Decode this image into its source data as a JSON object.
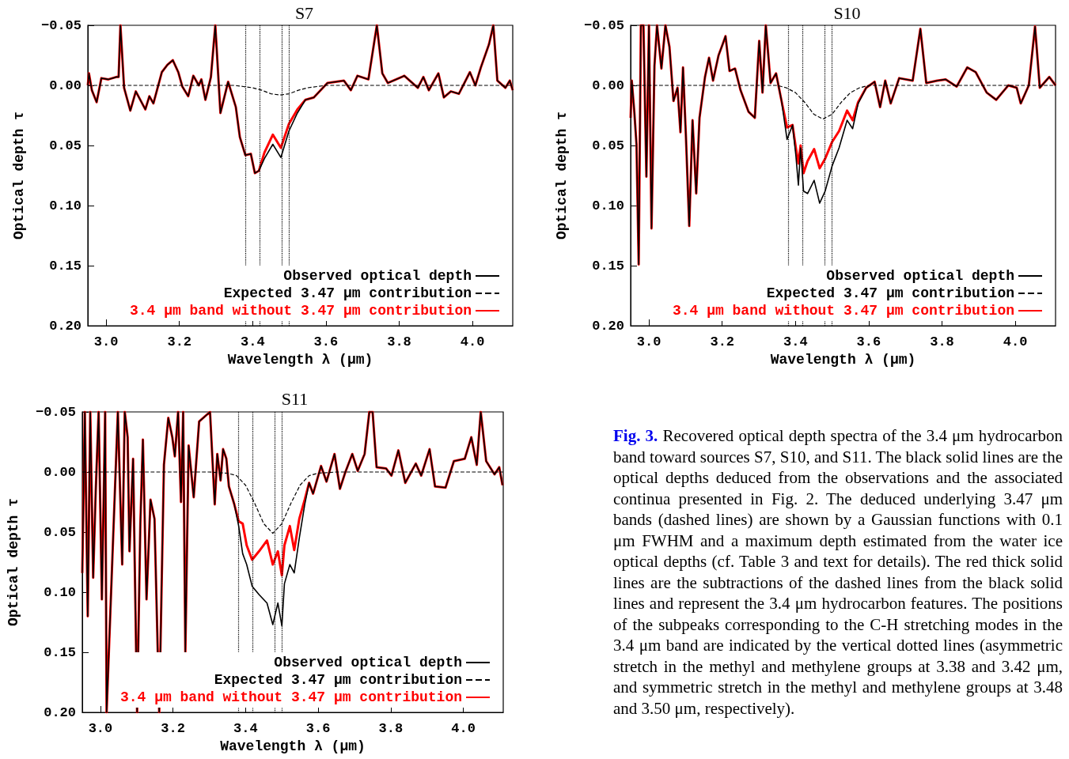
{
  "chart_data": [
    {
      "type": "line",
      "title": "S7",
      "xlabel": "Wavelength λ (μm)",
      "ylabel": "Optical depth τ",
      "xlim": [
        2.95,
        4.11
      ],
      "ylim": [
        0.2,
        -0.05
      ],
      "xticks": [
        {
          "value": 3.0,
          "label": "3.0"
        },
        {
          "value": 3.2,
          "label": "3.2"
        },
        {
          "value": 3.4,
          "label": "3.4"
        },
        {
          "value": 3.6,
          "label": "3.6"
        },
        {
          "value": 3.8,
          "label": "3.8"
        },
        {
          "value": 4.0,
          "label": "4.0"
        }
      ],
      "yticks": [
        {
          "value": -0.05,
          "label": "−0.05"
        },
        {
          "value": 0,
          "label": "0.00"
        },
        {
          "value": 0.05,
          "label": "0.05"
        },
        {
          "value": 0.1,
          "label": "0.10"
        },
        {
          "value": 0.15,
          "label": "0.15"
        },
        {
          "value": 0.2,
          "label": "0.20"
        }
      ],
      "grid": false,
      "legend": "bottom right",
      "marker": "none",
      "x": [
        2.95,
        2.953,
        2.961,
        2.974,
        2.987,
        3.006,
        3.028,
        3.034,
        3.039,
        3.049,
        3.066,
        3.081,
        3.107,
        3.118,
        3.129,
        3.152,
        3.167,
        3.182,
        3.197,
        3.208,
        3.224,
        3.238,
        3.253,
        3.26,
        3.271,
        3.286,
        3.298,
        3.312,
        3.333,
        3.354,
        3.365,
        3.38,
        3.395,
        3.406,
        3.417,
        3.432,
        3.455,
        3.477,
        3.499,
        3.522,
        3.544,
        3.567,
        3.604,
        3.649,
        3.668,
        3.686,
        3.716,
        3.739,
        3.754,
        3.769,
        3.814,
        3.851,
        3.866,
        3.881,
        3.907,
        3.922,
        3.941,
        3.963,
        3.993,
        4.008,
        4.023,
        4.045,
        4.057,
        4.068,
        4.09,
        4.102,
        4.11
      ],
      "series": [
        {
          "name": "Observed optical depth",
          "color": "#000000",
          "line_style": "solid",
          "values": [
            0.0,
            -0.01,
            0.004,
            0.014,
            -0.006,
            -0.005,
            -0.007,
            -0.007,
            -0.05,
            0.002,
            0.021,
            0.005,
            0.02,
            0.009,
            0.015,
            -0.011,
            -0.017,
            -0.021,
            -0.011,
            0.001,
            0.009,
            -0.008,
            0.0,
            -0.005,
            0.012,
            -0.007,
            -0.05,
            0.023,
            -0.003,
            0.018,
            0.043,
            0.058,
            0.057,
            0.073,
            0.071,
            0.061,
            0.049,
            0.06,
            0.038,
            0.023,
            0.012,
            0.01,
            -0.002,
            -0.004,
            0.004,
            -0.008,
            -0.005,
            -0.05,
            -0.01,
            -0.002,
            -0.008,
            0.002,
            -0.007,
            0.004,
            -0.01,
            0.01,
            0.005,
            0.007,
            -0.011,
            0.0,
            -0.015,
            -0.034,
            -0.05,
            -0.004,
            0.002,
            -0.004,
            0.004
          ]
        },
        {
          "name": "Expected 3.47 μm contribution",
          "color": "#000000",
          "line_style": "dashed",
          "x": [
            2.95,
            3.3,
            3.35,
            3.375,
            3.4,
            3.425,
            3.45,
            3.475,
            3.5,
            3.525,
            3.55,
            3.575,
            3.6,
            3.65,
            4.11
          ],
          "values": [
            0,
            0,
            0.0,
            0.001,
            0.002,
            0.004,
            0.007,
            0.008,
            0.007,
            0.004,
            0.002,
            0.001,
            0.0,
            0,
            0
          ]
        },
        {
          "name": "3.4 μm band without 3.47 μm contribution",
          "color": "#ff0000",
          "line_style": "solid",
          "values": [
            0.0,
            -0.01,
            0.004,
            0.014,
            -0.006,
            -0.005,
            -0.007,
            -0.007,
            -0.05,
            0.002,
            0.021,
            0.005,
            0.02,
            0.009,
            0.015,
            -0.011,
            -0.017,
            -0.021,
            -0.011,
            0.001,
            0.009,
            -0.008,
            0.0,
            -0.005,
            0.012,
            -0.007,
            -0.05,
            0.023,
            -0.003,
            0.018,
            0.043,
            0.058,
            0.057,
            0.073,
            0.071,
            0.056,
            0.041,
            0.052,
            0.032,
            0.02,
            0.012,
            0.01,
            -0.002,
            -0.004,
            0.004,
            -0.008,
            -0.005,
            -0.05,
            -0.01,
            -0.002,
            -0.008,
            0.002,
            -0.007,
            0.004,
            -0.01,
            0.01,
            0.005,
            0.007,
            -0.011,
            0.0,
            -0.015,
            -0.034,
            -0.05,
            -0.004,
            0.002,
            -0.004,
            0.004
          ]
        }
      ],
      "ref_lines": [
        {
          "axis": "x",
          "value": 3.38,
          "line_style": "dotted",
          "color": "#000000"
        },
        {
          "axis": "x",
          "value": 3.42,
          "line_style": "dotted",
          "color": "#000000"
        },
        {
          "axis": "x",
          "value": 3.48,
          "line_style": "dotted",
          "color": "#000000"
        },
        {
          "axis": "x",
          "value": 3.5,
          "line_style": "dotted",
          "color": "#000000"
        }
      ]
    },
    {
      "type": "line",
      "title": "S10",
      "xlabel": "Wavelength λ (μm)",
      "ylabel": "Optical depth τ",
      "xlim": [
        2.95,
        4.11
      ],
      "ylim": [
        0.2,
        -0.05
      ],
      "xticks": [
        {
          "value": 3.0,
          "label": "3.0"
        },
        {
          "value": 3.2,
          "label": "3.2"
        },
        {
          "value": 3.4,
          "label": "3.4"
        },
        {
          "value": 3.6,
          "label": "3.6"
        },
        {
          "value": 3.8,
          "label": "3.8"
        },
        {
          "value": 4.0,
          "label": "4.0"
        }
      ],
      "yticks": [
        {
          "value": -0.05,
          "label": "−0.05"
        },
        {
          "value": 0,
          "label": "0.00"
        },
        {
          "value": 0.05,
          "label": "0.05"
        },
        {
          "value": 0.1,
          "label": "0.10"
        },
        {
          "value": 0.15,
          "label": "0.15"
        },
        {
          "value": 0.2,
          "label": "0.20"
        }
      ],
      "grid": false,
      "legend": "bottom right",
      "marker": "none",
      "x": [
        2.95,
        2.953,
        2.96,
        2.966,
        2.972,
        2.978,
        2.985,
        2.993,
        3.0,
        3.007,
        3.015,
        3.022,
        3.034,
        3.045,
        3.056,
        3.067,
        3.078,
        3.086,
        3.093,
        3.101,
        3.11,
        3.119,
        3.129,
        3.138,
        3.153,
        3.164,
        3.175,
        3.19,
        3.201,
        3.209,
        3.22,
        3.235,
        3.25,
        3.272,
        3.289,
        3.301,
        3.31,
        3.319,
        3.332,
        3.347,
        3.362,
        3.377,
        3.392,
        3.401,
        3.408,
        3.414,
        3.422,
        3.433,
        3.451,
        3.466,
        3.481,
        3.5,
        3.519,
        3.541,
        3.556,
        3.571,
        3.593,
        3.616,
        3.631,
        3.645,
        3.66,
        3.683,
        3.72,
        3.741,
        3.757,
        3.787,
        3.81,
        3.84,
        3.869,
        3.892,
        3.922,
        3.948,
        3.981,
        4.004,
        4.015,
        4.037,
        4.054,
        4.067,
        4.093,
        4.11
      ],
      "series": [
        {
          "name": "Observed optical depth",
          "color": "#000000",
          "line_style": "solid",
          "values": [
            0.027,
            -0.004,
            0.022,
            0.049,
            0.149,
            -0.05,
            -0.05,
            0.076,
            -0.05,
            0.119,
            -0.016,
            -0.05,
            -0.014,
            -0.05,
            -0.032,
            0.013,
            0.002,
            0.039,
            -0.015,
            0.043,
            0.117,
            0.029,
            0.09,
            0.027,
            -0.007,
            -0.023,
            -0.004,
            -0.025,
            -0.034,
            -0.041,
            -0.012,
            -0.014,
            0.004,
            0.022,
            0.027,
            -0.037,
            0.006,
            -0.05,
            -0.002,
            -0.01,
            0.013,
            0.045,
            0.033,
            0.058,
            0.083,
            0.052,
            0.088,
            0.09,
            0.079,
            0.098,
            0.088,
            0.067,
            0.052,
            0.029,
            0.036,
            0.015,
            0.002,
            -0.003,
            0.018,
            -0.004,
            0.015,
            -0.006,
            -0.004,
            -0.047,
            -0.002,
            -0.004,
            -0.005,
            0.001,
            -0.015,
            -0.011,
            0.006,
            0.012,
            0.0,
            0.002,
            0.015,
            0.0,
            -0.049,
            0.002,
            -0.007,
            0.0
          ]
        },
        {
          "name": "Expected 3.47 μm contribution",
          "color": "#000000",
          "line_style": "dashed",
          "x": [
            2.95,
            3.3,
            3.35,
            3.375,
            3.4,
            3.425,
            3.45,
            3.475,
            3.5,
            3.525,
            3.55,
            3.575,
            3.6,
            3.65,
            4.11
          ],
          "values": [
            0,
            0,
            0.0,
            0.002,
            0.006,
            0.014,
            0.024,
            0.028,
            0.024,
            0.014,
            0.006,
            0.002,
            0.0,
            0,
            0
          ]
        },
        {
          "name": "3.4 μm band without 3.47 μm contribution",
          "color": "#ff0000",
          "line_style": "solid",
          "values": [
            0.027,
            -0.004,
            0.022,
            0.049,
            0.149,
            -0.05,
            -0.05,
            0.076,
            -0.05,
            0.119,
            -0.016,
            -0.05,
            -0.014,
            -0.05,
            -0.032,
            0.013,
            0.002,
            0.039,
            -0.015,
            0.043,
            0.117,
            0.029,
            0.09,
            0.027,
            -0.007,
            -0.023,
            -0.004,
            -0.025,
            -0.034,
            -0.041,
            -0.012,
            -0.014,
            0.004,
            0.022,
            0.027,
            -0.037,
            0.006,
            -0.05,
            -0.002,
            -0.01,
            0.013,
            0.035,
            0.033,
            0.052,
            0.065,
            0.05,
            0.073,
            0.063,
            0.053,
            0.069,
            0.061,
            0.047,
            0.038,
            0.021,
            0.029,
            0.014,
            0.002,
            -0.003,
            0.018,
            -0.004,
            0.015,
            -0.006,
            -0.004,
            -0.047,
            -0.002,
            -0.004,
            -0.005,
            0.001,
            -0.015,
            -0.011,
            0.006,
            0.012,
            0.0,
            0.002,
            0.015,
            0.0,
            -0.049,
            0.002,
            -0.007,
            0.0
          ]
        }
      ],
      "ref_lines": [
        {
          "axis": "x",
          "value": 3.38,
          "line_style": "dotted",
          "color": "#000000"
        },
        {
          "axis": "x",
          "value": 3.42,
          "line_style": "dotted",
          "color": "#000000"
        },
        {
          "axis": "x",
          "value": 3.48,
          "line_style": "dotted",
          "color": "#000000"
        },
        {
          "axis": "x",
          "value": 3.5,
          "line_style": "dotted",
          "color": "#000000"
        }
      ]
    },
    {
      "type": "line",
      "title": "S11",
      "xlabel": "Wavelength λ (μm)",
      "ylabel": "Optical depth τ",
      "xlim": [
        2.95,
        4.11
      ],
      "ylim": [
        0.2,
        -0.05
      ],
      "xticks": [
        {
          "value": 3.0,
          "label": "3.0"
        },
        {
          "value": 3.2,
          "label": "3.2"
        },
        {
          "value": 3.4,
          "label": "3.4"
        },
        {
          "value": 3.6,
          "label": "3.6"
        },
        {
          "value": 3.8,
          "label": "3.8"
        },
        {
          "value": 4.0,
          "label": "4.0"
        }
      ],
      "yticks": [
        {
          "value": -0.05,
          "label": "−0.05"
        },
        {
          "value": 0,
          "label": "0.00"
        },
        {
          "value": 0.05,
          "label": "0.05"
        },
        {
          "value": 0.1,
          "label": "0.10"
        },
        {
          "value": 0.15,
          "label": "0.15"
        },
        {
          "value": 0.2,
          "label": "0.20"
        }
      ],
      "grid": false,
      "legend": "bottom right",
      "marker": "none",
      "x": [
        2.95,
        2.957,
        2.965,
        2.972,
        2.98,
        2.987,
        2.995,
        3.004,
        3.013,
        3.017,
        3.048,
        3.06,
        3.067,
        3.075,
        3.08,
        3.09,
        3.101,
        3.11,
        3.117,
        3.127,
        3.138,
        3.149,
        3.162,
        3.175,
        3.187,
        3.198,
        3.205,
        3.214,
        3.222,
        3.228,
        3.234,
        3.243,
        3.257,
        3.272,
        3.302,
        3.315,
        3.322,
        3.331,
        3.338,
        3.347,
        3.354,
        3.369,
        3.381,
        3.392,
        3.403,
        3.418,
        3.437,
        3.459,
        3.475,
        3.489,
        3.5,
        3.507,
        3.522,
        3.534,
        3.548,
        3.563,
        3.575,
        3.586,
        3.608,
        3.623,
        3.645,
        3.66,
        3.675,
        3.694,
        3.709,
        3.728,
        3.741,
        3.75,
        3.761,
        3.787,
        3.802,
        3.821,
        3.84,
        3.869,
        3.884,
        3.907,
        3.922,
        3.951,
        3.974,
        4.004,
        4.022,
        4.037,
        4.048,
        4.063,
        4.086,
        4.099,
        4.108
      ],
      "series": [
        {
          "name": "Observed optical depth",
          "color": "#000000",
          "line_style": "solid",
          "values": [
            0.084,
            -0.05,
            0.12,
            -0.05,
            0.088,
            0.016,
            -0.05,
            0.106,
            -0.05,
            0.2,
            -0.05,
            0.077,
            -0.05,
            -0.029,
            0.066,
            -0.011,
            0.2,
            0.043,
            -0.027,
            0.106,
            0.023,
            0.039,
            0.2,
            -0.006,
            -0.045,
            -0.029,
            -0.013,
            -0.05,
            0.025,
            -0.05,
            0.15,
            -0.022,
            0.021,
            -0.042,
            -0.05,
            0.027,
            -0.015,
            0.007,
            -0.019,
            -0.011,
            0.012,
            0.027,
            0.045,
            0.068,
            0.077,
            0.095,
            0.102,
            0.109,
            0.127,
            0.109,
            0.128,
            0.093,
            0.077,
            0.084,
            0.055,
            0.027,
            0.009,
            0.018,
            -0.005,
            0.008,
            -0.015,
            0.014,
            0.0,
            -0.015,
            -0.001,
            -0.015,
            -0.05,
            -0.05,
            -0.004,
            -0.003,
            0.003,
            -0.018,
            0.009,
            -0.007,
            0.003,
            -0.019,
            0.012,
            0.013,
            -0.009,
            -0.011,
            -0.029,
            -0.006,
            -0.05,
            -0.009,
            0.002,
            -0.004,
            0.011
          ]
        },
        {
          "name": "Expected 3.47 μm contribution",
          "color": "#000000",
          "line_style": "dashed",
          "x": [
            2.95,
            3.3,
            3.35,
            3.375,
            3.4,
            3.425,
            3.45,
            3.475,
            3.5,
            3.525,
            3.55,
            3.575,
            3.6,
            3.65,
            4.11
          ],
          "values": [
            0,
            0,
            0.001,
            0.003,
            0.011,
            0.026,
            0.043,
            0.051,
            0.043,
            0.026,
            0.011,
            0.003,
            0.001,
            0,
            0
          ]
        },
        {
          "name": "3.4 μm band without 3.47 μm contribution",
          "color": "#ff0000",
          "line_style": "solid",
          "values": [
            0.084,
            -0.05,
            0.12,
            -0.05,
            0.088,
            0.016,
            -0.05,
            0.106,
            -0.05,
            0.2,
            -0.05,
            0.077,
            -0.05,
            -0.029,
            0.066,
            -0.011,
            0.2,
            0.043,
            -0.027,
            0.106,
            0.023,
            0.039,
            0.2,
            -0.006,
            -0.045,
            -0.029,
            -0.013,
            -0.05,
            0.025,
            -0.05,
            0.15,
            -0.022,
            0.021,
            -0.042,
            -0.05,
            0.027,
            -0.015,
            0.007,
            -0.019,
            -0.011,
            0.012,
            0.027,
            0.041,
            0.043,
            0.061,
            0.073,
            0.066,
            0.057,
            0.077,
            0.066,
            0.086,
            0.061,
            0.045,
            0.065,
            0.039,
            0.023,
            0.009,
            0.018,
            -0.005,
            0.008,
            -0.015,
            0.014,
            0.0,
            -0.015,
            -0.001,
            -0.015,
            -0.05,
            -0.05,
            -0.004,
            -0.003,
            0.003,
            -0.018,
            0.009,
            -0.007,
            0.003,
            -0.019,
            0.012,
            0.013,
            -0.009,
            -0.011,
            -0.029,
            -0.006,
            -0.05,
            -0.009,
            0.002,
            -0.004,
            0.011
          ]
        }
      ],
      "ref_lines": [
        {
          "axis": "x",
          "value": 3.38,
          "line_style": "dotted",
          "color": "#000000"
        },
        {
          "axis": "x",
          "value": 3.42,
          "line_style": "dotted",
          "color": "#000000"
        },
        {
          "axis": "x",
          "value": 3.48,
          "line_style": "dotted",
          "color": "#000000"
        },
        {
          "axis": "x",
          "value": 3.5,
          "line_style": "dotted",
          "color": "#000000"
        }
      ]
    },
    {
      "type": "other",
      "annotations": [
        "Fig. 3.",
        "Recovered optical depth spectra of the 3.4 μm hydrocarbon band toward sources S7, S10, and S11. The black solid lines are the optical depths deduced from the observations and the associated continua presented in Fig. 2. The deduced underlying 3.47 μm bands (dashed lines) are shown by a Gaussian functions with 0.1 μm FWHM and a maximum depth estimated from the water ice optical depths (cf. Table 3 and text for details). The red thick solid lines are the subtractions of the dashed lines from the black solid lines and represent the 3.4 μm hydrocarbon features. The positions of the subpeaks corresponding to the C-H stretching modes in the 3.4 μm band are indicated by the vertical dotted lines (asymmetric stretch in the methyl and methylene groups at 3.38 and 3.42 μm, and symmetric stretch in the methyl and methylene groups at 3.48 and 3.50 μm, respectively)."
      ]
    }
  ]
}
